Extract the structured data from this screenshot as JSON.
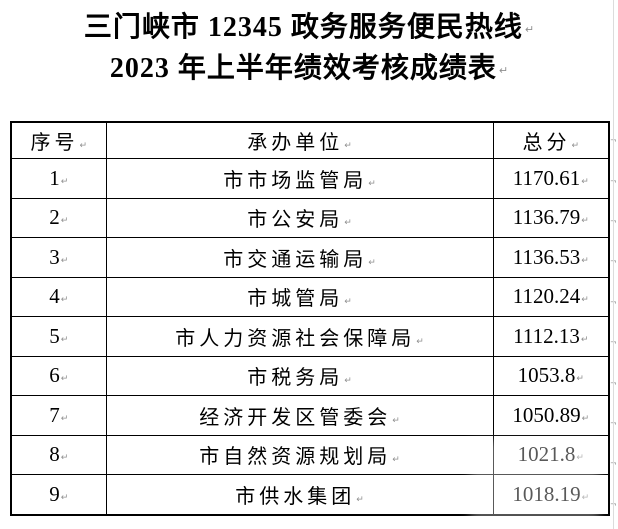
{
  "document": {
    "title_line1": "三门峡市 12345 政务服务便民热线",
    "title_line2": "2023 年上半年绩效考核成绩表"
  },
  "table": {
    "headers": {
      "no": "序号",
      "unit": "承办单位",
      "score": "总分"
    },
    "rows": [
      {
        "no": "1",
        "unit": "市市场监管局",
        "score": "1170.61"
      },
      {
        "no": "2",
        "unit": "市公安局",
        "score": "1136.79"
      },
      {
        "no": "3",
        "unit": "市交通运输局",
        "score": "1136.53"
      },
      {
        "no": "4",
        "unit": "市城管局",
        "score": "1120.24"
      },
      {
        "no": "5",
        "unit": "市人力资源社会保障局",
        "score": "1112.13"
      },
      {
        "no": "6",
        "unit": "市税务局",
        "score": "1053.8"
      },
      {
        "no": "7",
        "unit": "经济开发区管委会",
        "score": "1050.89"
      },
      {
        "no": "8",
        "unit": "市自然资源规划局",
        "score": "1021.8"
      },
      {
        "no": "9",
        "unit": "市供水集团",
        "score": "1018.19"
      }
    ]
  },
  "marks": {
    "paragraph_mark": "↵",
    "cell_end_mark": "↵",
    "row_end_mark": "¬"
  },
  "colors": {
    "text": "#000000",
    "table_border": "#000000",
    "mark_gray": "#8f8f8f",
    "page_edge_line": "#dcdcdc",
    "background": "#ffffff"
  }
}
